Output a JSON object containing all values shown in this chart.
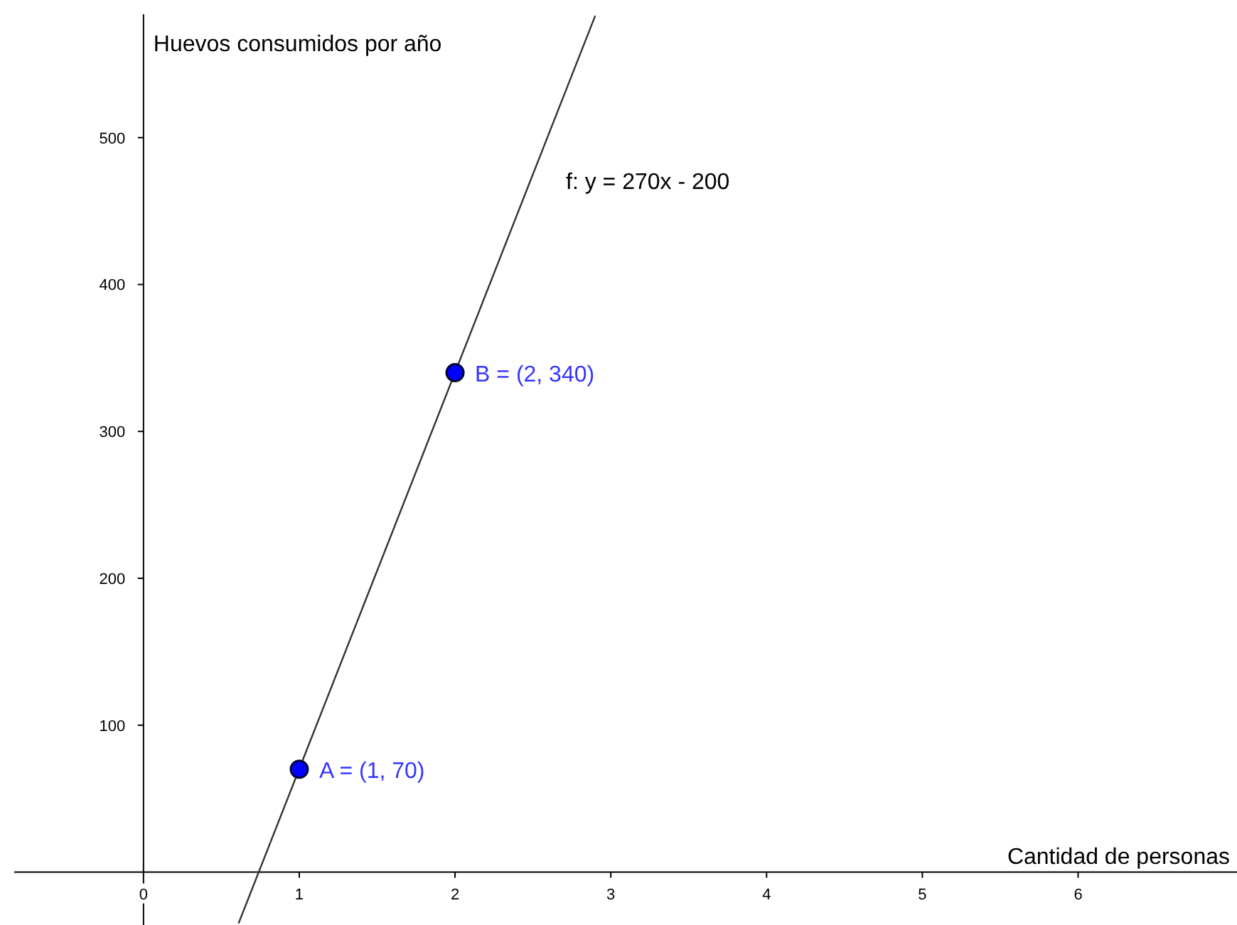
{
  "chart_data": {
    "type": "line",
    "xlabel": "Cantidad de personas",
    "ylabel": "Huevos consumidos por año",
    "xlim": [
      -0.83,
      7.02
    ],
    "ylim": [
      -36,
      584
    ],
    "xticks": [
      0,
      1,
      2,
      3,
      4,
      5,
      6
    ],
    "yticks": [
      100,
      200,
      300,
      400,
      500
    ],
    "grid": false,
    "series": [
      {
        "color": "#333333",
        "x": [
          0.61,
          2.9
        ],
        "values": [
          -35,
          583
        ],
        "marker": "none",
        "line_style": "solid"
      },
      {
        "type": "scatter",
        "color": "#0000ff",
        "x": [
          1,
          2
        ],
        "values": [
          70,
          340
        ],
        "marker": "circle"
      }
    ],
    "annotations": [
      {
        "text": "A = (1, 70)",
        "x": 1,
        "y": 70
      },
      {
        "text": "B = (2, 340)",
        "x": 2,
        "y": 340
      },
      "f: y = 270x - 200"
    ]
  }
}
